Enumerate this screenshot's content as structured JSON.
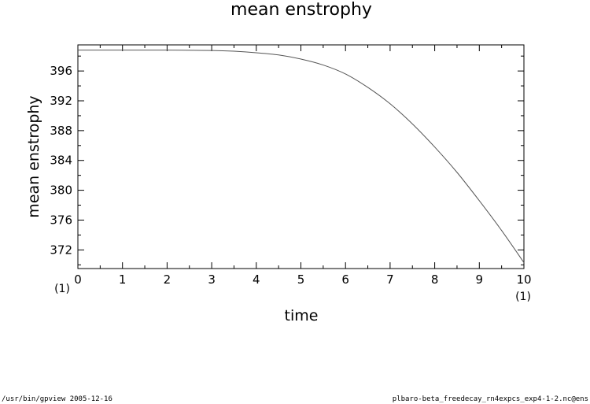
{
  "chart_data": {
    "type": "line",
    "title": "mean enstrophy",
    "xlabel": "time",
    "ylabel": "mean enstrophy",
    "x_unit": "(1)",
    "y_unit": "(1)",
    "xlim": [
      0,
      10
    ],
    "ylim": [
      369.5,
      399.5
    ],
    "x_ticks": [
      0,
      1,
      2,
      3,
      4,
      5,
      6,
      7,
      8,
      9,
      10
    ],
    "y_ticks": [
      372,
      376,
      380,
      384,
      388,
      392,
      396
    ],
    "grid": false,
    "series": [
      {
        "x": [
          0,
          1,
          2,
          3,
          3.5,
          4,
          4.5,
          5,
          5.5,
          6,
          6.5,
          7,
          7.5,
          8,
          8.5,
          9,
          9.5,
          10
        ],
        "y": [
          398.8,
          398.8,
          398.8,
          398.75,
          398.65,
          398.45,
          398.15,
          397.6,
          396.8,
          395.6,
          393.8,
          391.6,
          388.9,
          385.8,
          382.4,
          378.6,
          374.6,
          370.3
        ]
      }
    ]
  },
  "footer": {
    "left": "/usr/bin/gpview   2005-12-16",
    "right": "plbaro-beta_freedecay_rn4expcs_exp4-1-2.nc@ens"
  }
}
